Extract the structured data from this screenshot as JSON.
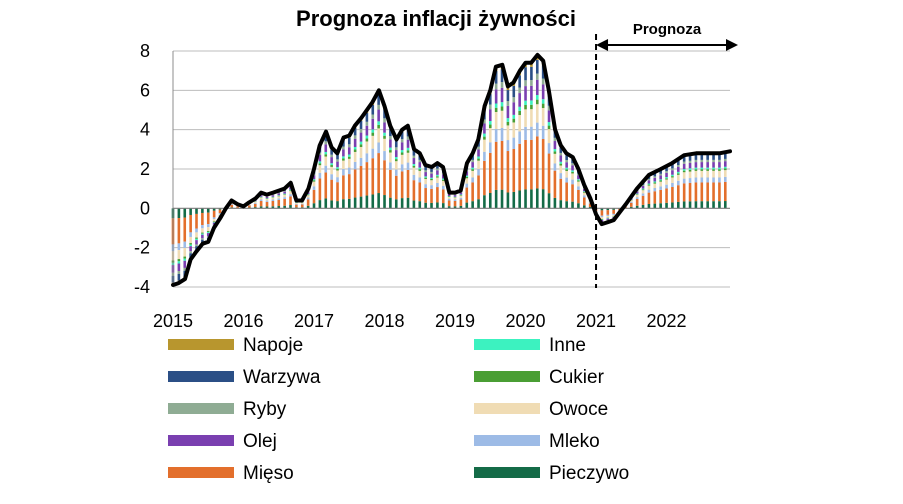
{
  "chart_data": {
    "type": "bar",
    "title": "Prognoza inflacji żywności",
    "annotation": "Prognoza",
    "ylim": [
      -4,
      8
    ],
    "yticks": [
      8,
      6,
      4,
      2,
      0,
      -2,
      -4
    ],
    "xlabels": [
      "2015",
      "2016",
      "2017",
      "2018",
      "2019",
      "2020",
      "2021",
      "2022"
    ],
    "x_range_years": [
      2015.0,
      2022.9
    ],
    "forecast_start_year": 2021.0,
    "stacked_components": true,
    "legend": [
      {
        "name": "Napoje",
        "color": "#b8962e"
      },
      {
        "name": "Warzywa",
        "color": "#2b4f86"
      },
      {
        "name": "Ryby",
        "color": "#8fac94"
      },
      {
        "name": "Olej",
        "color": "#7a3fb0"
      },
      {
        "name": "Mięso",
        "color": "#e36f2c"
      },
      {
        "name": "Inne",
        "color": "#3cf2c0"
      },
      {
        "name": "Cukier",
        "color": "#4a9e34"
      },
      {
        "name": "Owoce",
        "color": "#f0dcb4"
      },
      {
        "name": "Mleko",
        "color": "#9dbbe6"
      },
      {
        "name": "Pieczywo",
        "color": "#146b47"
      }
    ],
    "series_total": {
      "name": "Inflacja żywności",
      "color": "#000000",
      "x": [
        2015.0,
        2015.08,
        2015.17,
        2015.25,
        2015.33,
        2015.42,
        2015.5,
        2015.58,
        2015.67,
        2015.75,
        2015.83,
        2015.92,
        2016.0,
        2016.08,
        2016.17,
        2016.25,
        2016.33,
        2016.42,
        2016.5,
        2016.58,
        2016.67,
        2016.75,
        2016.83,
        2016.92,
        2017.0,
        2017.08,
        2017.17,
        2017.25,
        2017.33,
        2017.42,
        2017.5,
        2017.58,
        2017.67,
        2017.75,
        2017.83,
        2017.92,
        2018.0,
        2018.08,
        2018.17,
        2018.25,
        2018.33,
        2018.42,
        2018.5,
        2018.58,
        2018.67,
        2018.75,
        2018.83,
        2018.92,
        2019.0,
        2019.08,
        2019.17,
        2019.25,
        2019.33,
        2019.42,
        2019.5,
        2019.58,
        2019.67,
        2019.75,
        2019.83,
        2019.92,
        2020.0,
        2020.08,
        2020.17,
        2020.25,
        2020.33,
        2020.42,
        2020.5,
        2020.58,
        2020.67,
        2020.75,
        2020.83,
        2020.92,
        2021.0,
        2021.08,
        2021.17,
        2021.25,
        2021.42,
        2021.58,
        2021.75,
        2021.92,
        2022.08,
        2022.25,
        2022.42,
        2022.58,
        2022.75,
        2022.9
      ],
      "values": [
        -3.9,
        -3.8,
        -3.6,
        -2.6,
        -2.2,
        -1.8,
        -1.7,
        -1.0,
        -0.5,
        0.0,
        0.4,
        0.2,
        0.1,
        0.3,
        0.5,
        0.8,
        0.7,
        0.8,
        0.9,
        1.0,
        1.3,
        0.4,
        0.4,
        1.0,
        2.0,
        3.2,
        3.9,
        3.1,
        2.8,
        3.6,
        3.7,
        4.2,
        4.6,
        5.0,
        5.4,
        6.0,
        5.2,
        4.2,
        3.5,
        4.0,
        4.2,
        3.0,
        2.8,
        2.2,
        2.1,
        2.3,
        2.1,
        0.8,
        0.8,
        0.9,
        2.3,
        2.8,
        3.5,
        5.2,
        6.0,
        7.2,
        7.3,
        6.2,
        6.4,
        7.0,
        7.4,
        7.4,
        7.8,
        7.5,
        6.0,
        4.0,
        3.2,
        2.8,
        2.6,
        2.0,
        1.2,
        0.5,
        -0.3,
        -0.8,
        -0.7,
        -0.6,
        0.2,
        1.0,
        1.7,
        2.0,
        2.3,
        2.7,
        2.8,
        2.8,
        2.8,
        2.9
      ]
    }
  },
  "legend_items": [
    "Napoje",
    "Inne",
    "Warzywa",
    "Cukier",
    "Ryby",
    "Owoce",
    "Olej",
    "Mleko",
    "Mięso",
    "Pieczywo"
  ]
}
